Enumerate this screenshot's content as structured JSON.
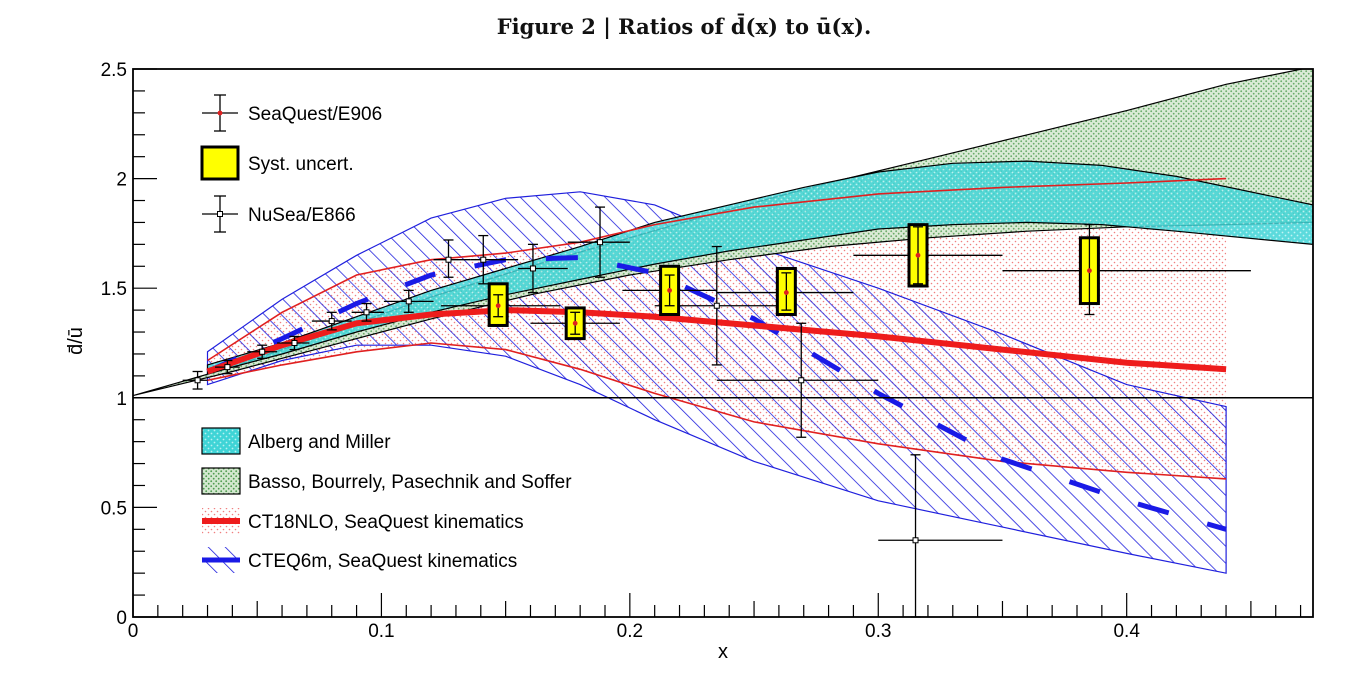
{
  "chart_data": {
    "type": "scatter",
    "title": "Figure 2 | Ratios of d̄(x) to ū(x).",
    "xlabel": "x",
    "ylabel": "d̄/ū",
    "xlim": [
      0,
      0.475
    ],
    "ylim": [
      0,
      2.5
    ],
    "x_ticks": [
      "0",
      "0.1",
      "0.2",
      "0.3",
      "0.4"
    ],
    "y_ticks": [
      "0",
      "0.5",
      "1",
      "1.5",
      "2",
      "2.5"
    ],
    "reference_line_y": 1,
    "legend_top": [
      "SeaQuest/E906",
      "Syst. uncert.",
      "NuSea/E866"
    ],
    "legend_bottom": [
      "Alberg and Miller",
      "Basso, Bourrely, Pasechnik and Soffer",
      "CT18NLO, SeaQuest kinematics",
      "CTEQ6m, SeaQuest kinematics"
    ],
    "series": [
      {
        "name": "SeaQuest/E906",
        "points": [
          {
            "x": 0.147,
            "y": 1.42,
            "xerr": [
              0.124,
              0.172
            ],
            "yerr": [
              1.37,
              1.47
            ],
            "syst": [
              1.33,
              1.52
            ]
          },
          {
            "x": 0.178,
            "y": 1.34,
            "xerr": [
              0.16,
              0.196
            ],
            "yerr": [
              1.29,
              1.39
            ],
            "syst": [
              1.27,
              1.41
            ]
          },
          {
            "x": 0.216,
            "y": 1.49,
            "xerr": [
              0.197,
              0.235
            ],
            "yerr": [
              1.42,
              1.56
            ],
            "syst": [
              1.38,
              1.6
            ]
          },
          {
            "x": 0.263,
            "y": 1.48,
            "xerr": [
              0.235,
              0.29
            ],
            "yerr": [
              1.4,
              1.57
            ],
            "syst": [
              1.38,
              1.59
            ]
          },
          {
            "x": 0.316,
            "y": 1.65,
            "xerr": [
              0.29,
              0.35
            ],
            "yerr": [
              1.52,
              1.78
            ],
            "syst": [
              1.51,
              1.79
            ]
          },
          {
            "x": 0.385,
            "y": 1.58,
            "xerr": [
              0.35,
              0.45
            ],
            "yerr": [
              1.38,
              1.79
            ],
            "syst": [
              1.43,
              1.73
            ]
          }
        ]
      },
      {
        "name": "NuSea/E866",
        "points": [
          {
            "x": 0.026,
            "y": 1.08,
            "xerr": [
              0.02,
              0.03
            ],
            "yerr": [
              1.04,
              1.12
            ]
          },
          {
            "x": 0.038,
            "y": 1.14,
            "xerr": [
              0.033,
              0.043
            ],
            "yerr": [
              1.11,
              1.17
            ]
          },
          {
            "x": 0.052,
            "y": 1.21,
            "xerr": [
              0.046,
              0.058
            ],
            "yerr": [
              1.18,
              1.24
            ]
          },
          {
            "x": 0.065,
            "y": 1.25,
            "xerr": [
              0.058,
              0.071
            ],
            "yerr": [
              1.22,
              1.28
            ]
          },
          {
            "x": 0.08,
            "y": 1.35,
            "xerr": [
              0.072,
              0.088
            ],
            "yerr": [
              1.31,
              1.39
            ]
          },
          {
            "x": 0.094,
            "y": 1.39,
            "xerr": [
              0.088,
              0.101
            ],
            "yerr": [
              1.35,
              1.43
            ]
          },
          {
            "x": 0.111,
            "y": 1.44,
            "xerr": [
              0.101,
              0.121
            ],
            "yerr": [
              1.39,
              1.49
            ]
          },
          {
            "x": 0.127,
            "y": 1.63,
            "xerr": [
              0.121,
              0.136
            ],
            "yerr": [
              1.55,
              1.72
            ]
          },
          {
            "x": 0.141,
            "y": 1.63,
            "xerr": [
              0.136,
              0.155
            ],
            "yerr": [
              1.52,
              1.74
            ]
          },
          {
            "x": 0.161,
            "y": 1.59,
            "xerr": [
              0.155,
              0.175
            ],
            "yerr": [
              1.48,
              1.7
            ]
          },
          {
            "x": 0.188,
            "y": 1.71,
            "xerr": [
              0.175,
              0.2
            ],
            "yerr": [
              1.55,
              1.87
            ]
          },
          {
            "x": 0.235,
            "y": 1.42,
            "xerr": [
              0.21,
              0.26
            ],
            "yerr": [
              1.15,
              1.69
            ]
          },
          {
            "x": 0.269,
            "y": 1.08,
            "xerr": [
              0.235,
              0.3
            ],
            "yerr": [
              0.82,
              1.34
            ]
          },
          {
            "x": 0.315,
            "y": 0.35,
            "xerr": [
              0.3,
              0.35
            ],
            "yerr": [
              0.0,
              0.74
            ]
          }
        ]
      },
      {
        "name": "Alberg and Miller",
        "band": {
          "x": [
            0.03,
            0.06,
            0.09,
            0.12,
            0.15,
            0.18,
            0.21,
            0.24,
            0.27,
            0.3,
            0.33,
            0.36,
            0.39,
            0.42,
            0.475
          ],
          "lower": [
            1.11,
            1.2,
            1.3,
            1.39,
            1.47,
            1.54,
            1.61,
            1.67,
            1.72,
            1.77,
            1.79,
            1.8,
            1.79,
            1.76,
            1.7
          ],
          "upper": [
            1.15,
            1.25,
            1.37,
            1.49,
            1.59,
            1.69,
            1.8,
            1.88,
            1.96,
            2.03,
            2.07,
            2.08,
            2.06,
            2.01,
            1.88
          ]
        }
      },
      {
        "name": "Basso, Bourrely, Pasechnik and Soffer",
        "band": {
          "x": [
            0.0,
            0.04,
            0.08,
            0.12,
            0.16,
            0.2,
            0.24,
            0.28,
            0.32,
            0.36,
            0.4,
            0.44,
            0.475
          ],
          "lower": [
            1.01,
            1.12,
            1.24,
            1.36,
            1.47,
            1.56,
            1.63,
            1.69,
            1.73,
            1.76,
            1.78,
            1.79,
            1.8
          ],
          "upper": [
            1.01,
            1.14,
            1.3,
            1.46,
            1.6,
            1.73,
            1.86,
            1.98,
            2.09,
            2.2,
            2.31,
            2.43,
            2.51
          ]
        }
      },
      {
        "name": "CT18NLO, SeaQuest kinematics",
        "x": [
          0.03,
          0.06,
          0.09,
          0.12,
          0.15,
          0.18,
          0.21,
          0.25,
          0.3,
          0.35,
          0.4,
          0.44
        ],
        "central": [
          1.12,
          1.24,
          1.34,
          1.38,
          1.4,
          1.39,
          1.37,
          1.33,
          1.28,
          1.22,
          1.16,
          1.13
        ],
        "lower": [
          1.08,
          1.15,
          1.21,
          1.25,
          1.22,
          1.13,
          1.02,
          0.89,
          0.79,
          0.71,
          0.66,
          0.63
        ],
        "upper": [
          1.17,
          1.39,
          1.56,
          1.63,
          1.66,
          1.71,
          1.79,
          1.87,
          1.93,
          1.96,
          1.98,
          2.0
        ]
      },
      {
        "name": "CTEQ6m, SeaQuest kinematics",
        "x": [
          0.03,
          0.06,
          0.09,
          0.12,
          0.15,
          0.18,
          0.21,
          0.25,
          0.3,
          0.35,
          0.4,
          0.44
        ],
        "central": [
          1.12,
          1.27,
          1.43,
          1.56,
          1.63,
          1.64,
          1.57,
          1.36,
          1.02,
          0.72,
          0.53,
          0.4
        ],
        "lower": [
          1.06,
          1.17,
          1.24,
          1.24,
          1.19,
          1.06,
          0.9,
          0.71,
          0.53,
          0.41,
          0.29,
          0.2
        ],
        "upper": [
          1.21,
          1.45,
          1.65,
          1.82,
          1.91,
          1.94,
          1.88,
          1.69,
          1.5,
          1.29,
          1.06,
          0.96
        ]
      }
    ]
  }
}
